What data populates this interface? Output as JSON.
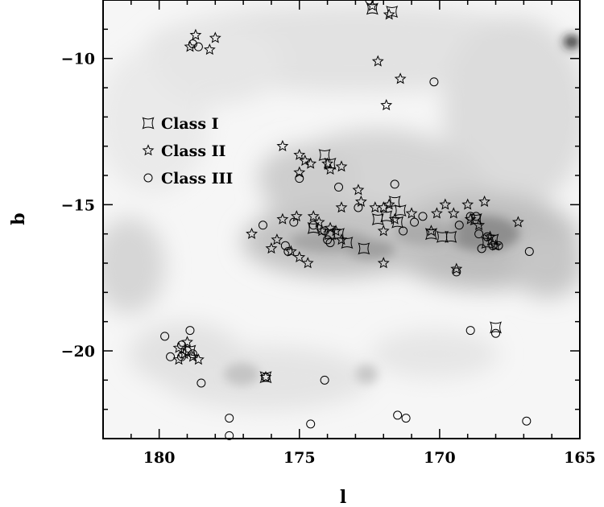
{
  "chart_data": {
    "type": "scatter",
    "xlabel": "l",
    "ylabel": "b",
    "xlim": [
      182,
      165
    ],
    "ylim": [
      -23,
      -8
    ],
    "x_ticks": [
      180,
      175,
      170,
      165
    ],
    "y_ticks": [
      -10,
      -15,
      -20
    ],
    "x_tick_labels": [
      "180",
      "175",
      "170",
      "165"
    ],
    "y_tick_labels": [
      "−10",
      "−15",
      "−20"
    ],
    "legend_position": "upper-left",
    "background": "greyscale extinction map",
    "legend": [
      {
        "label": "Class I",
        "marker": "square-concave"
      },
      {
        "label": "Class II",
        "marker": "star"
      },
      {
        "label": "Class III",
        "marker": "circle"
      }
    ],
    "series": [
      {
        "name": "Class I",
        "marker": "square-concave",
        "points": [
          [
            172.4,
            -8.3
          ],
          [
            171.7,
            -8.4
          ],
          [
            174.1,
            -13.3
          ],
          [
            173.9,
            -13.6
          ],
          [
            172.2,
            -15.5
          ],
          [
            171.6,
            -14.9
          ],
          [
            171.4,
            -15.2
          ],
          [
            171.9,
            -15.4
          ],
          [
            171.5,
            -15.6
          ],
          [
            173.6,
            -16.0
          ],
          [
            173.3,
            -16.3
          ],
          [
            172.7,
            -16.5
          ],
          [
            173.9,
            -16.0
          ],
          [
            170.3,
            -16.0
          ],
          [
            169.9,
            -16.1
          ],
          [
            169.6,
            -16.1
          ],
          [
            168.7,
            -15.5
          ],
          [
            168.3,
            -16.3
          ],
          [
            168.1,
            -16.2
          ],
          [
            168.0,
            -19.2
          ],
          [
            174.5,
            -15.8
          ],
          [
            176.2,
            -20.9
          ],
          [
            178.9,
            -20.0
          ]
        ]
      },
      {
        "name": "Class II",
        "marker": "star",
        "points": [
          [
            172.4,
            -8.2
          ],
          [
            171.8,
            -8.5
          ],
          [
            178.7,
            -9.2
          ],
          [
            178.0,
            -9.3
          ],
          [
            178.9,
            -9.6
          ],
          [
            178.2,
            -9.7
          ],
          [
            172.2,
            -10.1
          ],
          [
            171.4,
            -10.7
          ],
          [
            171.9,
            -11.6
          ],
          [
            175.6,
            -13.0
          ],
          [
            175.0,
            -13.3
          ],
          [
            174.8,
            -13.5
          ],
          [
            174.6,
            -13.6
          ],
          [
            174.0,
            -13.6
          ],
          [
            173.9,
            -13.8
          ],
          [
            173.5,
            -13.7
          ],
          [
            175.0,
            -13.9
          ],
          [
            172.9,
            -14.5
          ],
          [
            172.8,
            -14.9
          ],
          [
            172.3,
            -15.1
          ],
          [
            172.0,
            -15.1
          ],
          [
            171.8,
            -15.0
          ],
          [
            173.5,
            -15.1
          ],
          [
            171.0,
            -15.3
          ],
          [
            170.1,
            -15.3
          ],
          [
            169.8,
            -15.0
          ],
          [
            169.5,
            -15.3
          ],
          [
            169.0,
            -15.0
          ],
          [
            168.4,
            -14.9
          ],
          [
            167.2,
            -15.6
          ],
          [
            168.9,
            -15.5
          ],
          [
            168.6,
            -15.7
          ],
          [
            175.6,
            -15.5
          ],
          [
            175.1,
            -15.4
          ],
          [
            174.5,
            -15.4
          ],
          [
            174.3,
            -15.6
          ],
          [
            173.9,
            -15.8
          ],
          [
            173.7,
            -15.9
          ],
          [
            174.2,
            -15.9
          ],
          [
            176.7,
            -16.0
          ],
          [
            175.8,
            -16.2
          ],
          [
            176.0,
            -16.5
          ],
          [
            175.3,
            -16.6
          ],
          [
            175.0,
            -16.8
          ],
          [
            174.7,
            -17.0
          ],
          [
            173.5,
            -16.2
          ],
          [
            172.0,
            -15.9
          ],
          [
            171.6,
            -15.5
          ],
          [
            172.0,
            -17.0
          ],
          [
            169.4,
            -17.2
          ],
          [
            170.3,
            -15.9
          ],
          [
            168.2,
            -16.1
          ],
          [
            168.0,
            -16.4
          ],
          [
            179.0,
            -19.7
          ],
          [
            179.3,
            -19.9
          ],
          [
            179.1,
            -20.1
          ],
          [
            178.8,
            -20.2
          ],
          [
            178.6,
            -20.3
          ],
          [
            179.3,
            -20.3
          ],
          [
            176.2,
            -20.9
          ]
        ]
      },
      {
        "name": "Class III",
        "marker": "circle",
        "points": [
          [
            172.5,
            -8.0
          ],
          [
            178.8,
            -9.5
          ],
          [
            178.6,
            -9.6
          ],
          [
            170.2,
            -10.8
          ],
          [
            175.0,
            -14.1
          ],
          [
            173.6,
            -14.4
          ],
          [
            171.6,
            -14.3
          ],
          [
            172.9,
            -15.1
          ],
          [
            175.2,
            -15.6
          ],
          [
            174.5,
            -15.7
          ],
          [
            176.3,
            -15.7
          ],
          [
            174.1,
            -15.9
          ],
          [
            174.0,
            -16.2
          ],
          [
            173.9,
            -16.3
          ],
          [
            171.3,
            -15.9
          ],
          [
            170.9,
            -15.6
          ],
          [
            170.6,
            -15.4
          ],
          [
            169.3,
            -15.7
          ],
          [
            168.9,
            -15.4
          ],
          [
            168.7,
            -15.4
          ],
          [
            168.6,
            -16.0
          ],
          [
            168.3,
            -16.1
          ],
          [
            168.5,
            -16.5
          ],
          [
            168.1,
            -16.4
          ],
          [
            167.9,
            -16.4
          ],
          [
            166.8,
            -16.6
          ],
          [
            175.5,
            -16.4
          ],
          [
            175.4,
            -16.6
          ],
          [
            169.4,
            -17.3
          ],
          [
            179.8,
            -19.5
          ],
          [
            178.9,
            -19.3
          ],
          [
            179.2,
            -19.8
          ],
          [
            179.0,
            -20.0
          ],
          [
            178.8,
            -20.1
          ],
          [
            179.6,
            -20.2
          ],
          [
            179.2,
            -20.2
          ],
          [
            168.9,
            -19.3
          ],
          [
            168.0,
            -19.4
          ],
          [
            178.5,
            -21.1
          ],
          [
            174.1,
            -21.0
          ],
          [
            176.2,
            -20.9
          ],
          [
            177.5,
            -22.3
          ],
          [
            177.5,
            -22.9
          ],
          [
            174.6,
            -22.5
          ],
          [
            171.5,
            -22.2
          ],
          [
            171.2,
            -22.3
          ],
          [
            166.9,
            -22.4
          ]
        ]
      }
    ]
  }
}
